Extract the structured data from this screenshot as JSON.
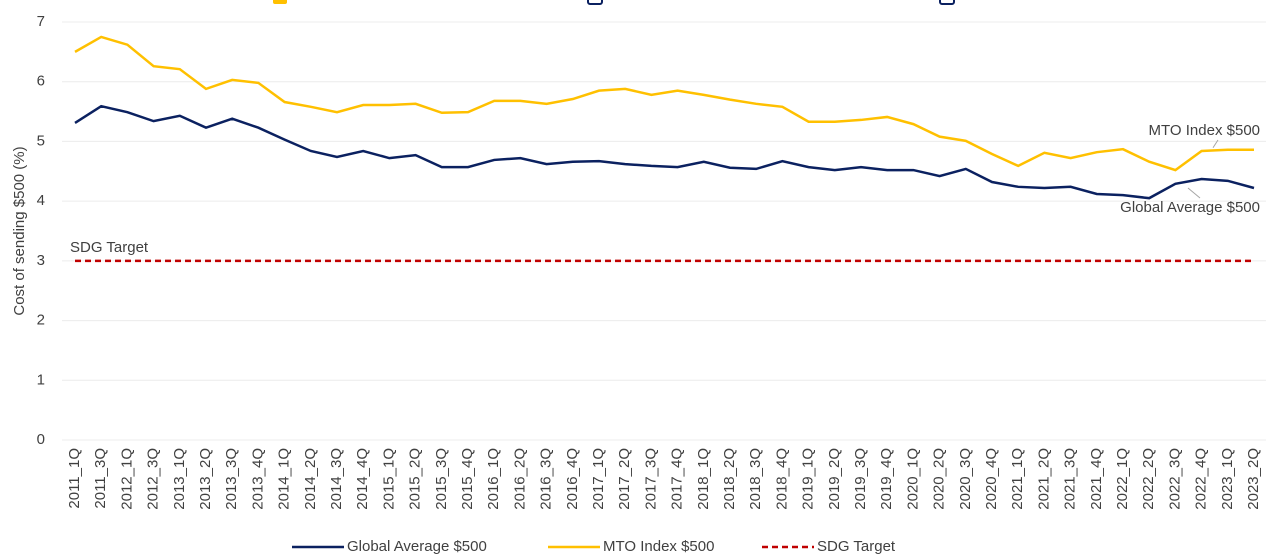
{
  "chart_data": {
    "type": "line",
    "y_label": "Cost of sending $500 (%)",
    "categories": [
      "2011_1Q",
      "2011_3Q",
      "2012_1Q",
      "2012_3Q",
      "2013_1Q",
      "2013_2Q",
      "2013_3Q",
      "2013_4Q",
      "2014_1Q",
      "2014_2Q",
      "2014_3Q",
      "2014_4Q",
      "2015_1Q",
      "2015_2Q",
      "2015_3Q",
      "2015_4Q",
      "2016_1Q",
      "2016_2Q",
      "2016_3Q",
      "2016_4Q",
      "2017_1Q",
      "2017_2Q",
      "2017_3Q",
      "2017_4Q",
      "2018_1Q",
      "2018_2Q",
      "2018_3Q",
      "2018_4Q",
      "2019_1Q",
      "2019_2Q",
      "2019_3Q",
      "2019_4Q",
      "2020_1Q",
      "2020_2Q",
      "2020_3Q",
      "2020_4Q",
      "2021_1Q",
      "2021_2Q",
      "2021_3Q",
      "2021_4Q",
      "2022_1Q",
      "2022_2Q",
      "2022_3Q",
      "2022_4Q",
      "2023_1Q",
      "2023_2Q"
    ],
    "series": [
      {
        "name": "Global Average $500",
        "color": "#0b2160",
        "dash": false,
        "values": [
          5.31,
          5.59,
          5.49,
          5.34,
          5.43,
          5.23,
          5.38,
          5.23,
          5.03,
          4.84,
          4.74,
          4.84,
          4.72,
          4.77,
          4.57,
          4.57,
          4.69,
          4.72,
          4.62,
          4.66,
          4.67,
          4.62,
          4.59,
          4.57,
          4.66,
          4.56,
          4.54,
          4.67,
          4.57,
          4.52,
          4.57,
          4.52,
          4.52,
          4.42,
          4.54,
          4.32,
          4.24,
          4.22,
          4.24,
          4.12,
          4.1,
          4.05,
          4.29,
          4.37,
          4.34,
          4.22
        ]
      },
      {
        "name": "MTO Index $500",
        "color": "#ffc000",
        "dash": false,
        "values": [
          6.5,
          6.75,
          6.62,
          6.26,
          6.21,
          5.88,
          6.03,
          5.98,
          5.66,
          5.58,
          5.49,
          5.61,
          5.61,
          5.63,
          5.48,
          5.49,
          5.68,
          5.68,
          5.63,
          5.71,
          5.85,
          5.88,
          5.78,
          5.85,
          5.78,
          5.7,
          5.63,
          5.58,
          5.33,
          5.33,
          5.36,
          5.41,
          5.29,
          5.08,
          5.01,
          4.79,
          4.59,
          4.81,
          4.72,
          4.82,
          4.87,
          4.66,
          4.52,
          4.84,
          4.86,
          4.86
        ]
      },
      {
        "name": "SDG Target",
        "color": "#c00000",
        "dash": true,
        "values": [
          3,
          3,
          3,
          3,
          3,
          3,
          3,
          3,
          3,
          3,
          3,
          3,
          3,
          3,
          3,
          3,
          3,
          3,
          3,
          3,
          3,
          3,
          3,
          3,
          3,
          3,
          3,
          3,
          3,
          3,
          3,
          3,
          3,
          3,
          3,
          3,
          3,
          3,
          3,
          3,
          3,
          3,
          3,
          3,
          3,
          3
        ]
      }
    ],
    "ylim": [
      0,
      7
    ],
    "yticks": [
      0,
      1,
      2,
      3,
      4,
      5,
      6,
      7
    ],
    "grid": true
  }
}
